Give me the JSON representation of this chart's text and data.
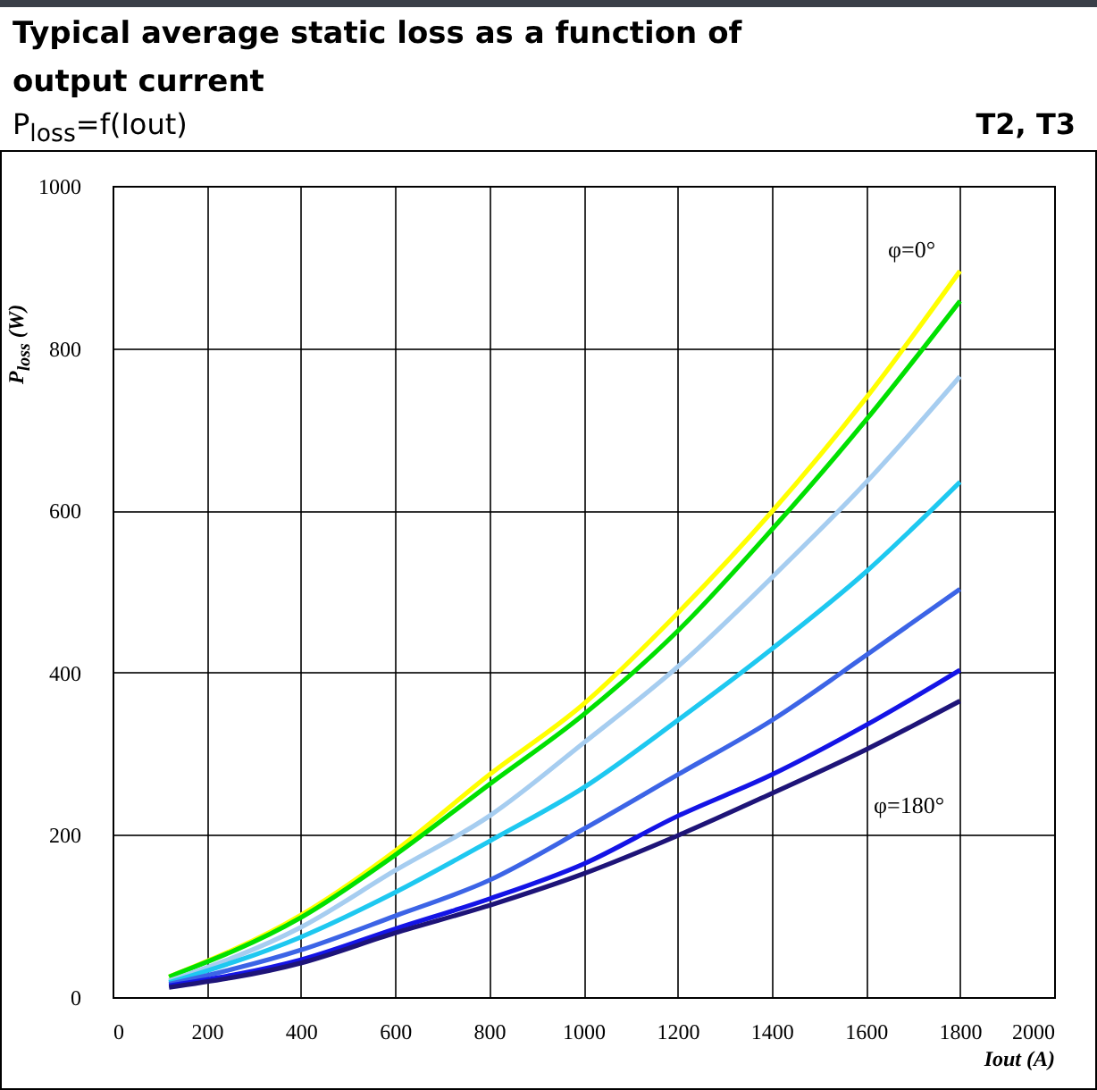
{
  "chart_data": {
    "type": "line",
    "title": "Typical average static loss as a function of output current",
    "subtitle": "P$_{loss}$=f(Iout)",
    "xlabel": "Iout (A)",
    "ylabel": "P$_{loss}$ (W)",
    "x": [
      120,
      400,
      600,
      800,
      1000,
      1200,
      1400,
      1600,
      1800
    ],
    "series": [
      {
        "color": "#ffff00",
        "values": [
          25,
          101,
          180,
          274,
          361,
          473,
          598,
          738,
          895
        ]
      },
      {
        "color": "#00e000",
        "values": [
          25,
          98,
          175,
          262,
          348,
          451,
          576,
          711,
          858
        ]
      },
      {
        "color": "#a6cdf0",
        "values": [
          20,
          86,
          156,
          223,
          313,
          407,
          517,
          634,
          765
        ]
      },
      {
        "color": "#1ec8f0",
        "values": [
          18,
          74,
          129,
          192,
          258,
          341,
          429,
          524,
          635
        ]
      },
      {
        "color": "#3c64e6",
        "values": [
          16,
          58,
          100,
          144,
          207,
          274,
          341,
          421,
          503
        ]
      },
      {
        "color": "#1414e6",
        "values": [
          14,
          46,
          84,
          121,
          164,
          223,
          274,
          335,
          403
        ]
      },
      {
        "color": "#1e1478",
        "values": [
          12,
          42,
          79,
          113,
          152,
          199,
          251,
          305,
          365
        ]
      }
    ],
    "xlim": [
      0,
      2000
    ],
    "xticks": [
      0,
      200,
      400,
      600,
      800,
      1000,
      1200,
      1400,
      1600,
      1800,
      2000
    ],
    "ylim": [
      0,
      1000
    ],
    "yticks": [
      0,
      200,
      400,
      600,
      800,
      1000
    ],
    "grid": true,
    "marker": "none",
    "line_style": "solid",
    "annotations": [
      "T2, T3",
      "φ=0°",
      "φ=180°"
    ]
  }
}
